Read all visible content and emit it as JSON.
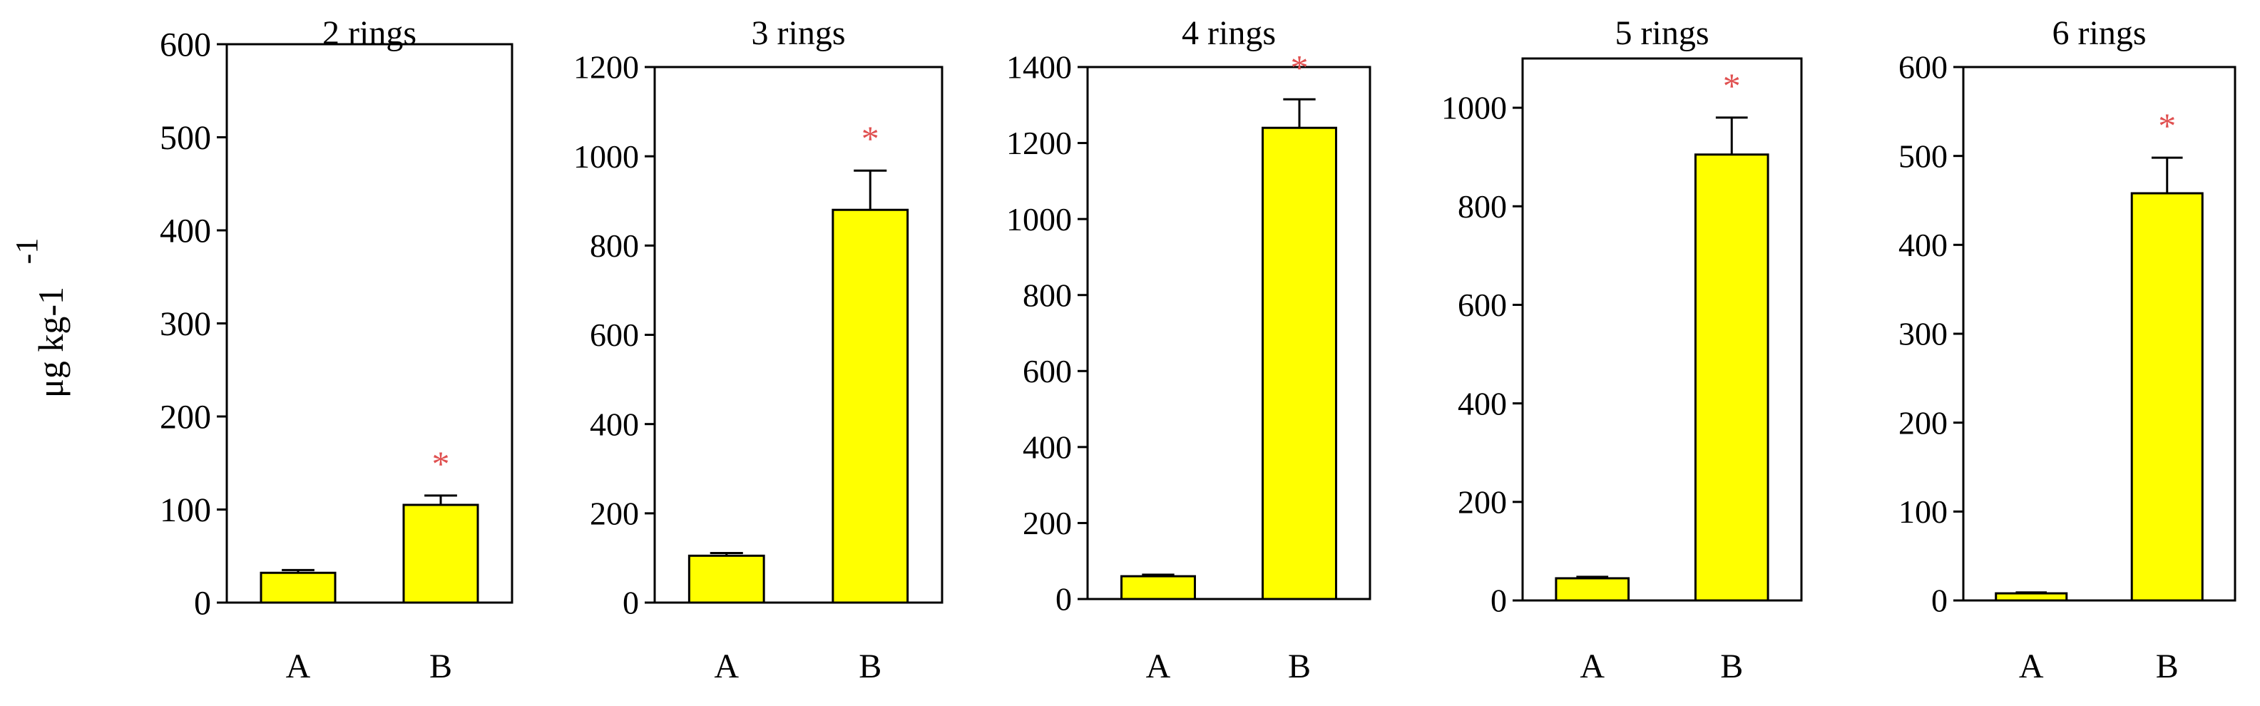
{
  "chart_data": [
    {
      "type": "bar",
      "title": "2 rings",
      "categories": [
        "A",
        "B"
      ],
      "values": [
        32,
        105
      ],
      "error": [
        3,
        10
      ],
      "significance": [
        "",
        "*"
      ],
      "ylim": [
        0,
        600
      ],
      "yticks": [
        0,
        100,
        200,
        300,
        400,
        500,
        600
      ],
      "ylabel": "μg kg-1"
    },
    {
      "type": "bar",
      "title": "3 rings",
      "categories": [
        "A",
        "B"
      ],
      "values": [
        105,
        880
      ],
      "error": [
        6,
        88
      ],
      "significance": [
        "",
        "*"
      ],
      "ylim": [
        0,
        1200
      ],
      "yticks": [
        0,
        200,
        400,
        600,
        800,
        1000,
        1200
      ]
    },
    {
      "type": "bar",
      "title": "4 rings",
      "categories": [
        "A",
        "B"
      ],
      "values": [
        60,
        1240
      ],
      "error": [
        4,
        75
      ],
      "significance": [
        "",
        "*"
      ],
      "ylim": [
        0,
        1400
      ],
      "yticks": [
        0,
        200,
        400,
        600,
        800,
        1000,
        1200,
        1400
      ]
    },
    {
      "type": "bar",
      "title": "5 rings",
      "categories": [
        "A",
        "B"
      ],
      "values": [
        45,
        905
      ],
      "error": [
        3,
        75
      ],
      "significance": [
        "",
        "*"
      ],
      "ylim": [
        0,
        1100
      ],
      "yticks": [
        0,
        200,
        400,
        600,
        800,
        1000
      ]
    },
    {
      "type": "bar",
      "title": "6 rings",
      "categories": [
        "A",
        "B"
      ],
      "values": [
        8,
        458
      ],
      "error": [
        1,
        40
      ],
      "significance": [
        "",
        "*"
      ],
      "ylim": [
        0,
        600
      ],
      "yticks": [
        0,
        100,
        200,
        300,
        400,
        500,
        600
      ]
    }
  ],
  "ylabel_superscript": "-1",
  "colors": {
    "bar_fill": "#ffff00",
    "bar_stroke": "#000000",
    "significance": "#e05050",
    "axis": "#000000"
  }
}
